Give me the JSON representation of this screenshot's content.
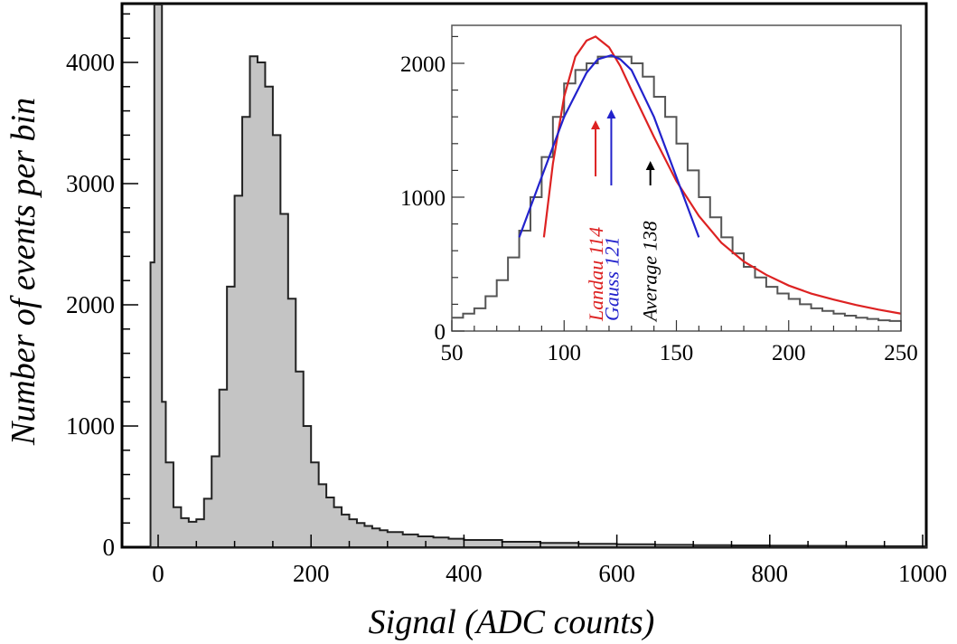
{
  "chart_data": [
    {
      "type": "histogram",
      "xlabel": "Signal (ADC counts)",
      "ylabel": "Number of events per bin",
      "xlim": [
        -40,
        1000
      ],
      "ylim": [
        0,
        4500
      ],
      "grid": false,
      "x_ticks": [
        0,
        200,
        400,
        600,
        800,
        1000
      ],
      "y_ticks": [
        0,
        1000,
        2000,
        3000,
        4000
      ],
      "x_tick_labels": [
        "0",
        "200",
        "400",
        "600",
        "800",
        "1000"
      ],
      "y_tick_labels": [
        "0",
        "1000",
        "2000",
        "3000",
        "4000"
      ],
      "bin_width": 10,
      "pedestal": {
        "x": [
          -10,
          -5,
          0,
          5
        ],
        "values": [
          2350,
          4500,
          4500,
          1200
        ]
      },
      "series": [
        {
          "x": [
            10,
            20,
            30,
            40,
            50,
            60,
            70,
            80,
            90,
            100,
            110,
            120,
            130,
            140,
            150,
            160,
            170,
            180,
            190,
            200,
            210,
            220,
            230,
            240,
            250,
            260,
            270,
            280,
            290,
            300,
            320,
            340,
            360,
            380,
            400,
            450,
            500,
            550,
            600,
            650,
            700,
            750,
            800,
            850,
            900,
            950,
            1000
          ],
          "values": [
            700,
            330,
            240,
            210,
            230,
            400,
            750,
            1300,
            2150,
            2900,
            3550,
            4050,
            4000,
            3800,
            3400,
            2750,
            2050,
            1450,
            1000,
            700,
            520,
            410,
            330,
            270,
            230,
            200,
            175,
            155,
            140,
            125,
            105,
            90,
            80,
            70,
            60,
            45,
            35,
            28,
            24,
            20,
            17,
            15,
            13,
            11,
            9,
            8,
            7
          ]
        }
      ]
    },
    {
      "type": "histogram",
      "xlim": [
        50,
        250
      ],
      "ylim": [
        0,
        2300
      ],
      "x_ticks": [
        50,
        100,
        150,
        200,
        250
      ],
      "y_ticks": [
        0,
        1000,
        2000
      ],
      "x_tick_labels": [
        "50",
        "100",
        "150",
        "200",
        "250"
      ],
      "y_tick_labels": [
        "0",
        "1000",
        "2000"
      ],
      "bin_width": 5,
      "series": [
        {
          "x": [
            50,
            55,
            60,
            65,
            70,
            75,
            80,
            85,
            90,
            95,
            100,
            105,
            110,
            115,
            120,
            125,
            130,
            135,
            140,
            145,
            150,
            155,
            160,
            165,
            170,
            175,
            180,
            185,
            190,
            195,
            200,
            205,
            210,
            215,
            220,
            225,
            230,
            235,
            240,
            245
          ],
          "values": [
            100,
            130,
            170,
            260,
            380,
            550,
            750,
            1000,
            1300,
            1600,
            1850,
            1950,
            2000,
            2050,
            2050,
            2050,
            2000,
            1900,
            1750,
            1600,
            1400,
            1200,
            1000,
            850,
            700,
            580,
            480,
            400,
            330,
            280,
            240,
            200,
            170,
            150,
            130,
            115,
            100,
            90,
            80,
            75
          ]
        },
        {
          "name": "Landau fit",
          "color": "#dd2222",
          "x": [
            91,
            95,
            100,
            105,
            110,
            114,
            120,
            125,
            130,
            140,
            150,
            160,
            170,
            180,
            190,
            200,
            210,
            220,
            230,
            240,
            250
          ],
          "values": [
            700,
            1250,
            1750,
            2050,
            2170,
            2200,
            2120,
            1980,
            1800,
            1450,
            1120,
            860,
            660,
            520,
            420,
            340,
            280,
            235,
            195,
            160,
            130
          ]
        },
        {
          "name": "Gauss fit",
          "color": "#2222cc",
          "x": [
            80,
            90,
            100,
            110,
            115,
            121,
            125,
            130,
            140,
            150,
            160
          ],
          "values": [
            700,
            1150,
            1600,
            1930,
            2030,
            2060,
            2030,
            1950,
            1600,
            1150,
            700
          ]
        }
      ],
      "annotations": [
        {
          "text": "Landau 114",
          "x": 114,
          "color": "#dd2222"
        },
        {
          "text": "Gauss 121",
          "x": 121,
          "color": "#2222cc"
        },
        {
          "text": "Average 138",
          "x": 138,
          "color": "#000000"
        }
      ]
    }
  ]
}
